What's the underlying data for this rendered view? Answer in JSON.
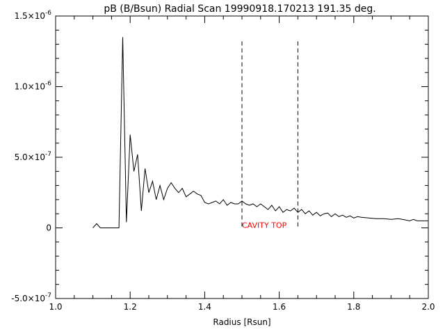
{
  "chart_data": {
    "type": "line",
    "title": "pB (B/Bsun) Radial Scan 19990918.170213 191.35 deg.",
    "xlabel": "Radius [Rsun]",
    "ylabel": "",
    "xlim": [
      1.0,
      2.0
    ],
    "ylim": [
      -5e-07,
      1.5e-06
    ],
    "x_ticks": [
      {
        "value": 1.0,
        "label": "1.0"
      },
      {
        "value": 1.2,
        "label": "1.2"
      },
      {
        "value": 1.4,
        "label": "1.4"
      },
      {
        "value": 1.6,
        "label": "1.6"
      },
      {
        "value": 1.8,
        "label": "1.8"
      },
      {
        "value": 2.0,
        "label": "2.0"
      }
    ],
    "y_ticks": [
      {
        "value": -5e-07,
        "mantissa": "-5.0×10",
        "exp": "-7"
      },
      {
        "value": 0,
        "mantissa": "0",
        "exp": ""
      },
      {
        "value": 5e-07,
        "mantissa": "5.0×10",
        "exp": "-7"
      },
      {
        "value": 1e-06,
        "mantissa": "1.0×10",
        "exp": "-6"
      },
      {
        "value": 1.5e-06,
        "mantissa": "1.5×10",
        "exp": "-6"
      }
    ],
    "grid": false,
    "series": [
      {
        "color": "#000000",
        "points": [
          [
            1.1,
            0.0
          ],
          [
            1.11,
            3e-08
          ],
          [
            1.12,
            0.0
          ],
          [
            1.13,
            0.0
          ],
          [
            1.14,
            0.0
          ],
          [
            1.15,
            0.0
          ],
          [
            1.16,
            0.0
          ],
          [
            1.17,
            0.0
          ],
          [
            1.18,
            1.35e-06
          ],
          [
            1.19,
            4e-08
          ],
          [
            1.2,
            6.6e-07
          ],
          [
            1.21,
            4e-07
          ],
          [
            1.22,
            5.2e-07
          ],
          [
            1.23,
            1.2e-07
          ],
          [
            1.24,
            4.2e-07
          ],
          [
            1.25,
            2.5e-07
          ],
          [
            1.26,
            3.3e-07
          ],
          [
            1.27,
            2e-07
          ],
          [
            1.28,
            3e-07
          ],
          [
            1.29,
            2e-07
          ],
          [
            1.3,
            2.8e-07
          ],
          [
            1.31,
            3.2e-07
          ],
          [
            1.32,
            2.8e-07
          ],
          [
            1.33,
            2.5e-07
          ],
          [
            1.34,
            2.8e-07
          ],
          [
            1.35,
            2.2e-07
          ],
          [
            1.36,
            2.4e-07
          ],
          [
            1.37,
            2.6e-07
          ],
          [
            1.38,
            2.4e-07
          ],
          [
            1.39,
            2.3e-07
          ],
          [
            1.4,
            1.8e-07
          ],
          [
            1.41,
            1.7e-07
          ],
          [
            1.42,
            1.8e-07
          ],
          [
            1.43,
            1.9e-07
          ],
          [
            1.44,
            1.7e-07
          ],
          [
            1.45,
            2e-07
          ],
          [
            1.46,
            1.6e-07
          ],
          [
            1.47,
            1.8e-07
          ],
          [
            1.48,
            1.7e-07
          ],
          [
            1.49,
            1.7e-07
          ],
          [
            1.5,
            1.9e-07
          ],
          [
            1.51,
            1.7e-07
          ],
          [
            1.52,
            1.6e-07
          ],
          [
            1.53,
            1.7e-07
          ],
          [
            1.54,
            1.5e-07
          ],
          [
            1.55,
            1.7e-07
          ],
          [
            1.56,
            1.5e-07
          ],
          [
            1.57,
            1.3e-07
          ],
          [
            1.58,
            1.6e-07
          ],
          [
            1.59,
            1.2e-07
          ],
          [
            1.6,
            1.5e-07
          ],
          [
            1.61,
            1.1e-07
          ],
          [
            1.62,
            1.3e-07
          ],
          [
            1.63,
            1.2e-07
          ],
          [
            1.64,
            1.4e-07
          ],
          [
            1.65,
            1.1e-07
          ],
          [
            1.66,
            1.3e-07
          ],
          [
            1.67,
            1e-07
          ],
          [
            1.68,
            1.2e-07
          ],
          [
            1.69,
            9e-08
          ],
          [
            1.7,
            1.1e-07
          ],
          [
            1.71,
            8.5e-08
          ],
          [
            1.72,
            1e-07
          ],
          [
            1.73,
            1.05e-07
          ],
          [
            1.74,
            8e-08
          ],
          [
            1.75,
            1e-07
          ],
          [
            1.76,
            8e-08
          ],
          [
            1.77,
            9e-08
          ],
          [
            1.78,
            7.5e-08
          ],
          [
            1.79,
            8.5e-08
          ],
          [
            1.8,
            7e-08
          ],
          [
            1.81,
            8e-08
          ],
          [
            1.82,
            7.5e-08
          ],
          [
            1.84,
            7e-08
          ],
          [
            1.86,
            6.5e-08
          ],
          [
            1.88,
            6.5e-08
          ],
          [
            1.9,
            6e-08
          ],
          [
            1.92,
            6.5e-08
          ],
          [
            1.94,
            5.5e-08
          ],
          [
            1.95,
            5e-08
          ],
          [
            1.96,
            6e-08
          ],
          [
            1.97,
            5e-08
          ],
          [
            1.98,
            5e-08
          ],
          [
            2.0,
            5e-08
          ]
        ]
      }
    ],
    "vlines": [
      {
        "x": 1.5,
        "y_range": [
          -5e-09,
          1.32e-06
        ],
        "style": "dashed",
        "color": "#000000"
      },
      {
        "x": 1.65,
        "y_range": [
          -5e-09,
          1.32e-06
        ],
        "style": "dashed",
        "color": "#000000"
      }
    ],
    "annotations": [
      {
        "text": "CAVITY TOP",
        "x": 1.5,
        "y": 0.0,
        "color": "#ff0000"
      }
    ]
  }
}
